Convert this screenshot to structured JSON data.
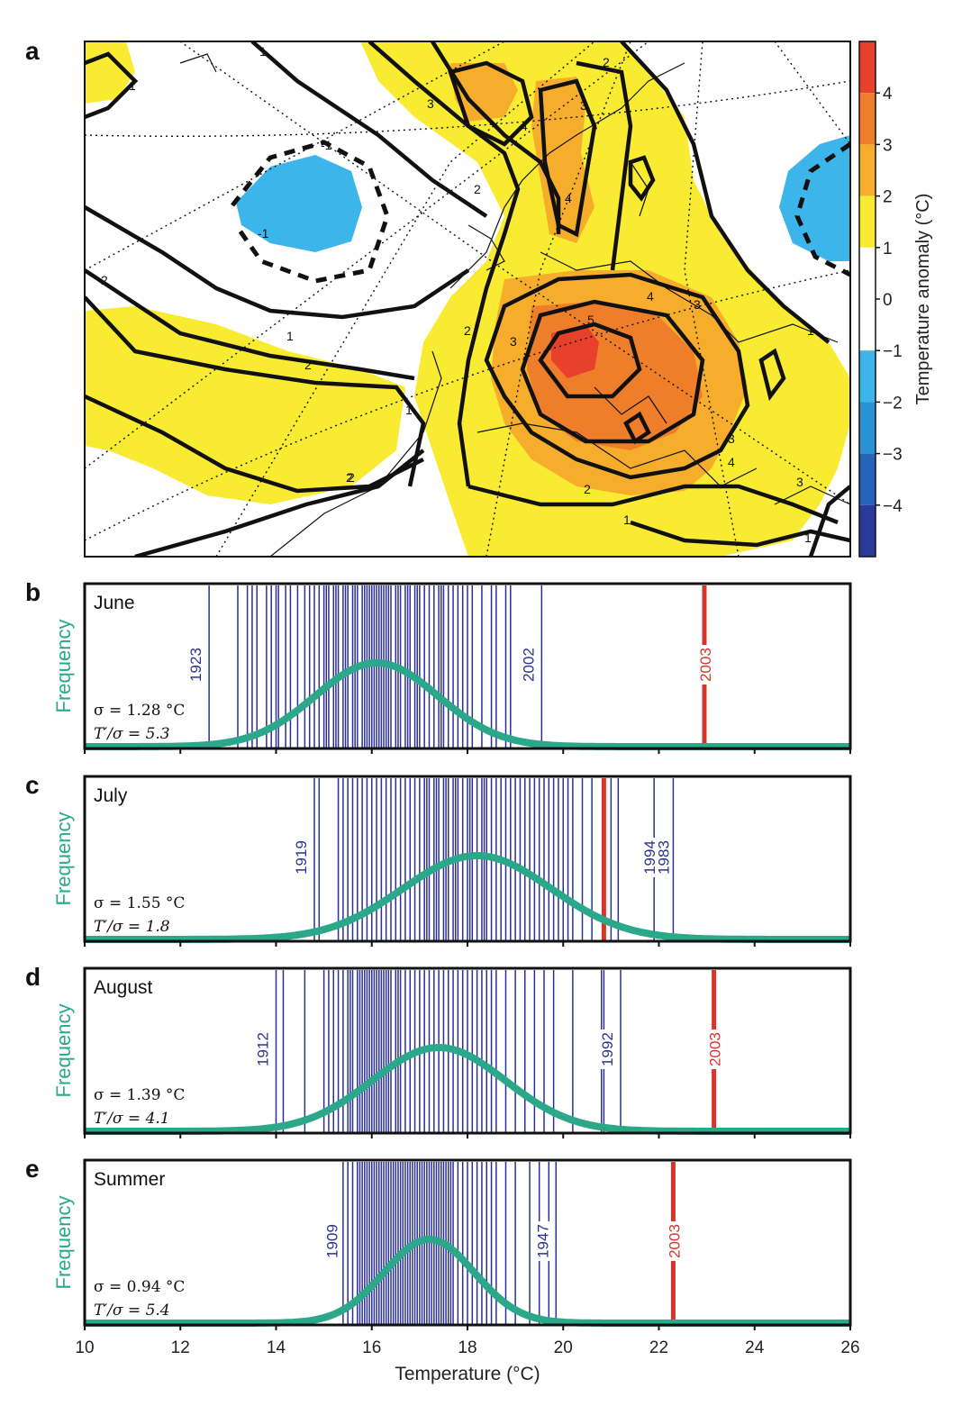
{
  "map_panel": {
    "label": "a",
    "colorbar": {
      "title": "Temperature anomaly (°C)",
      "ticks": [
        "4",
        "3",
        "2",
        "1",
        "0",
        "−1",
        "−2",
        "−3",
        "−4"
      ],
      "bands": [
        {
          "from": 4,
          "to": 5,
          "color": "#e8412b"
        },
        {
          "from": 3,
          "to": 4,
          "color": "#ef7e2a"
        },
        {
          "from": 2,
          "to": 3,
          "color": "#f6ad2c"
        },
        {
          "from": 1,
          "to": 2,
          "color": "#f8eb32"
        },
        {
          "from": 0,
          "to": 1,
          "color": "#ffffff"
        },
        {
          "from": -1,
          "to": 0,
          "color": "#ffffff"
        },
        {
          "from": -2,
          "to": -1,
          "color": "#3cb6ea"
        },
        {
          "from": -3,
          "to": -2,
          "color": "#2a92d4"
        },
        {
          "from": -4,
          "to": -3,
          "color": "#2564b8"
        },
        {
          "from": -5,
          "to": -4,
          "color": "#2a3a9a"
        }
      ]
    },
    "contour_labels": [
      "1",
      "1",
      "2",
      "-1",
      "-1",
      "2",
      "1",
      "2",
      "1",
      "2",
      "3",
      "2",
      "4",
      "3",
      "4",
      "3",
      "5",
      "4",
      "3",
      "2",
      "3",
      "2",
      "1",
      "3",
      "4",
      "2",
      "1",
      "1"
    ]
  },
  "colors": {
    "normal_curve": "#2aa889",
    "year_line": "#2b3092",
    "highlight": "#d9342a",
    "frame": "#111111"
  },
  "chart_data": [
    {
      "type": "histogram",
      "panel": "b",
      "month": "June",
      "sigma_text": "σ = 1.28 °C",
      "ratio_text": "T′/σ = 5.3",
      "ylabel": "Frequency",
      "mean": 16.1,
      "sigma": 1.28,
      "years": [
        12.6,
        13.2,
        13.4,
        13.5,
        13.6,
        13.8,
        13.9,
        14.0,
        14.05,
        14.2,
        14.3,
        14.45,
        14.6,
        14.7,
        14.8,
        14.9,
        15.0,
        15.05,
        15.1,
        15.2,
        15.25,
        15.3,
        15.4,
        15.45,
        15.5,
        15.6,
        15.65,
        15.7,
        15.8,
        15.85,
        15.9,
        15.95,
        16.0,
        16.05,
        16.1,
        16.15,
        16.2,
        16.25,
        16.3,
        16.35,
        16.4,
        16.5,
        16.55,
        16.6,
        16.7,
        16.75,
        16.8,
        16.9,
        16.95,
        17.0,
        17.1,
        17.2,
        17.3,
        17.4,
        17.45,
        17.5,
        17.6,
        17.7,
        17.8,
        17.9,
        18.0,
        18.1,
        18.3,
        18.5,
        18.6,
        18.8,
        18.9,
        19.55
      ],
      "labeled_years": [
        {
          "year": "1923",
          "value": 12.6
        },
        {
          "year": "2002",
          "value": 19.55
        }
      ],
      "highlight_year": {
        "year": "2003",
        "value": 22.95
      }
    },
    {
      "type": "histogram",
      "panel": "c",
      "month": "July",
      "sigma_text": "σ = 1.55 °C",
      "ratio_text": "T′/σ = 1.8",
      "ylabel": "Frequency",
      "mean": 18.2,
      "sigma": 1.55,
      "years": [
        14.8,
        14.9,
        15.3,
        15.4,
        15.5,
        15.6,
        15.7,
        15.8,
        15.9,
        16.0,
        16.1,
        16.2,
        16.3,
        16.4,
        16.5,
        16.6,
        16.7,
        16.8,
        16.9,
        17.0,
        17.1,
        17.15,
        17.2,
        17.3,
        17.35,
        17.4,
        17.5,
        17.55,
        17.6,
        17.7,
        17.75,
        17.8,
        17.9,
        18.0,
        18.05,
        18.1,
        18.2,
        18.3,
        18.35,
        18.4,
        18.5,
        18.6,
        18.7,
        18.8,
        18.9,
        19.0,
        19.1,
        19.2,
        19.3,
        19.4,
        19.5,
        19.6,
        19.7,
        19.8,
        19.9,
        20.0,
        20.1,
        20.2,
        20.4,
        20.6,
        21.0,
        21.15,
        21.9,
        22.3
      ],
      "labeled_years": [
        {
          "year": "1919",
          "value": 14.8
        },
        {
          "year": "1994",
          "value": 21.9
        },
        {
          "year": "1983",
          "value": 22.3
        }
      ],
      "highlight_year": {
        "year": "",
        "value": 20.85
      }
    },
    {
      "type": "histogram",
      "panel": "d",
      "month": "August",
      "sigma_text": "σ = 1.39 °C",
      "ratio_text": "T′/σ = 4.1",
      "ylabel": "Frequency",
      "mean": 17.4,
      "sigma": 1.39,
      "years": [
        14.0,
        14.15,
        14.6,
        15.0,
        15.1,
        15.2,
        15.3,
        15.4,
        15.5,
        15.55,
        15.6,
        15.7,
        15.75,
        15.8,
        15.85,
        15.9,
        15.95,
        16.0,
        16.05,
        16.1,
        16.15,
        16.2,
        16.25,
        16.3,
        16.35,
        16.4,
        16.5,
        16.55,
        16.6,
        16.7,
        16.8,
        16.9,
        17.0,
        17.1,
        17.2,
        17.3,
        17.4,
        17.5,
        17.6,
        17.7,
        17.8,
        17.9,
        18.0,
        18.1,
        18.2,
        18.3,
        18.4,
        18.5,
        18.6,
        18.8,
        19.0,
        19.2,
        19.4,
        19.6,
        19.8,
        20.2,
        20.8,
        20.85,
        21.2
      ],
      "labeled_years": [
        {
          "year": "1912",
          "value": 14.0
        },
        {
          "year": "1992",
          "value": 21.2
        }
      ],
      "highlight_year": {
        "year": "2003",
        "value": 23.15
      }
    },
    {
      "type": "histogram",
      "panel": "e",
      "month": "Summer",
      "sigma_text": "σ = 0.94 °C",
      "ratio_text": "T′/σ = 5.4",
      "ylabel": "Frequency",
      "xlabel": "Temperature (°C)",
      "xlim": [
        10,
        26
      ],
      "xticks": [
        10,
        12,
        14,
        16,
        18,
        20,
        22,
        24,
        26
      ],
      "mean": 17.2,
      "sigma": 0.94,
      "years": [
        15.4,
        15.5,
        15.6,
        15.7,
        15.75,
        15.8,
        15.85,
        15.9,
        15.95,
        16.0,
        16.05,
        16.1,
        16.15,
        16.2,
        16.25,
        16.3,
        16.35,
        16.4,
        16.45,
        16.5,
        16.55,
        16.6,
        16.65,
        16.7,
        16.75,
        16.8,
        16.85,
        16.9,
        16.95,
        17.0,
        17.05,
        17.1,
        17.15,
        17.2,
        17.25,
        17.3,
        17.35,
        17.4,
        17.45,
        17.5,
        17.55,
        17.6,
        17.65,
        17.7,
        17.8,
        17.9,
        18.0,
        18.1,
        18.2,
        18.3,
        18.4,
        18.5,
        18.6,
        18.8,
        19.0,
        19.3,
        19.5,
        19.7,
        19.85
      ],
      "labeled_years": [
        {
          "year": "1909",
          "value": 15.45
        },
        {
          "year": "1947",
          "value": 19.85
        }
      ],
      "highlight_year": {
        "year": "2003",
        "value": 22.3
      }
    }
  ]
}
